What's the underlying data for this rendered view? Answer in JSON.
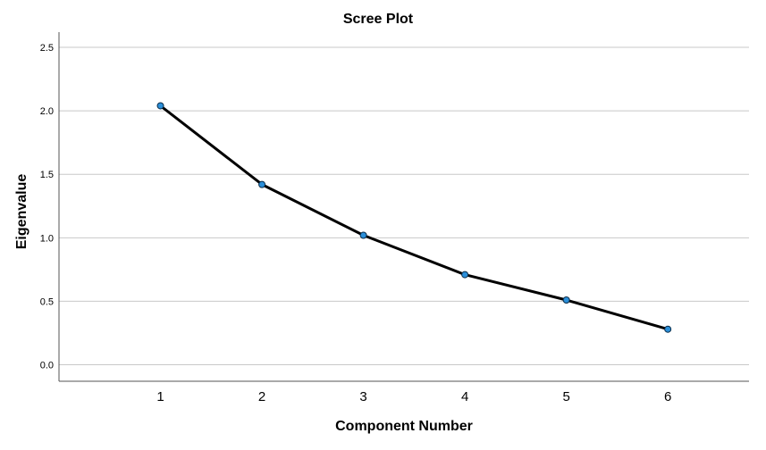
{
  "chart_data": {
    "type": "line",
    "title": "Scree Plot",
    "xlabel": "Component Number",
    "ylabel": "Eigenvalue",
    "x": [
      1,
      2,
      3,
      4,
      5,
      6
    ],
    "y": [
      2.04,
      1.42,
      1.02,
      0.71,
      0.51,
      0.28
    ],
    "xticks": [
      "1",
      "2",
      "3",
      "4",
      "5",
      "6"
    ],
    "yticks": [
      "0.0",
      "0.5",
      "1.0",
      "1.5",
      "2.0",
      "2.5"
    ],
    "ytick_values": [
      0.0,
      0.5,
      1.0,
      1.5,
      2.0,
      2.5
    ],
    "xlim": [
      0,
      6.8
    ],
    "ylim": [
      -0.13,
      2.62
    ],
    "grid": "horizontal",
    "legend": "none",
    "colors": {
      "line": "#000000",
      "marker_fill": "#2b8fd9",
      "marker_stroke": "#0a2d4a",
      "grid": "#c8c8c8",
      "axis": "#555555"
    }
  }
}
